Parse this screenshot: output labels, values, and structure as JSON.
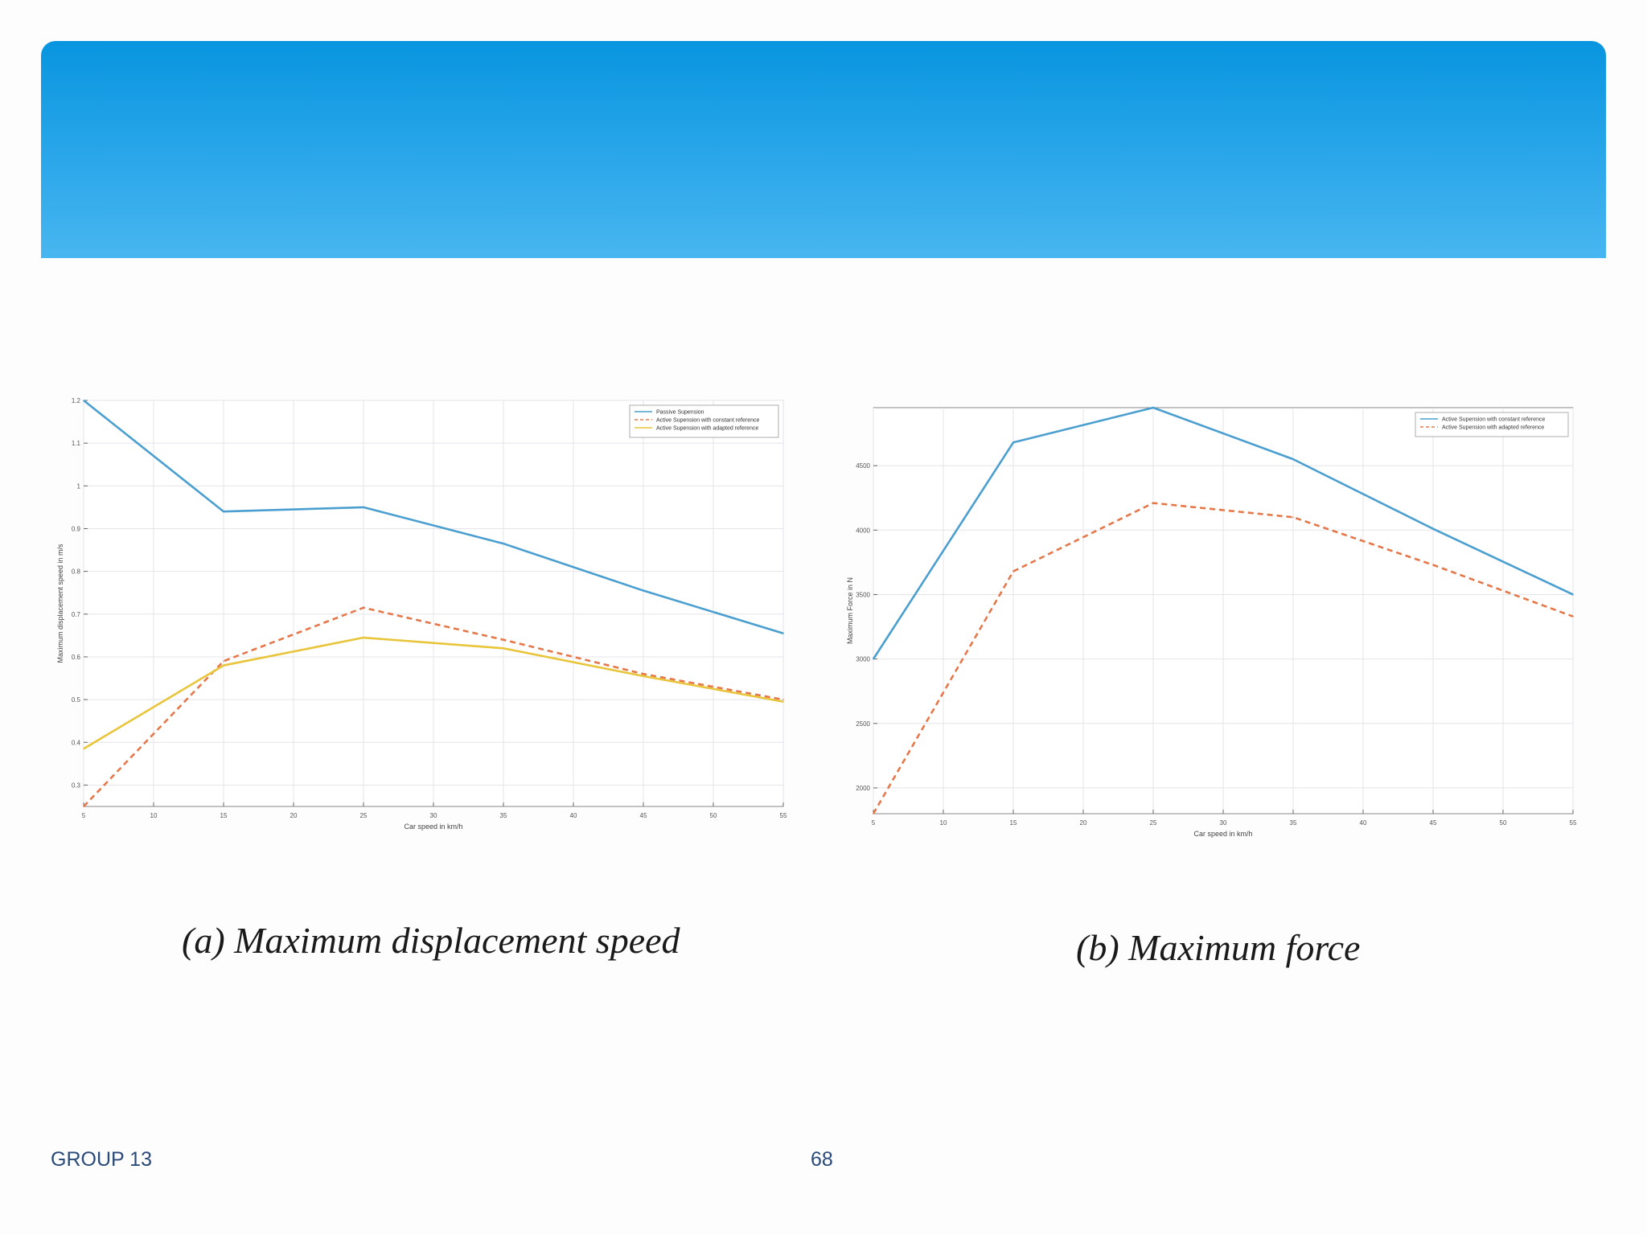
{
  "slide": {
    "footer_left": "GROUP 13",
    "page_number": "68",
    "banner_color": "#1a9fe6"
  },
  "captions": {
    "a": "(a) Maximum displacement speed",
    "b": "(b) Maximum force"
  },
  "chart_data": [
    {
      "type": "line",
      "xlabel": "Car speed in km/h",
      "ylabel": "Maximum displacement speed in m/s",
      "xlim": [
        5,
        55
      ],
      "ylim": [
        0.25,
        1.2
      ],
      "xticks": [
        5,
        10,
        15,
        20,
        25,
        30,
        35,
        40,
        45,
        50,
        55
      ],
      "yticks": [
        0.3,
        0.4,
        0.5,
        0.6,
        0.7,
        0.8,
        0.9,
        1,
        1.1,
        1.2
      ],
      "grid": true,
      "legend_position": "top-right",
      "x": [
        5,
        15,
        25,
        35,
        45,
        55
      ],
      "series": [
        {
          "name": "Passive Supension",
          "color": "#4a9fd0",
          "dash": "solid",
          "values": [
            1.2,
            0.94,
            0.95,
            0.865,
            0.755,
            0.655
          ]
        },
        {
          "name": "Active Supension with constant reference",
          "color": "#e5784a",
          "dash": "dashed",
          "values": [
            0.25,
            0.59,
            0.715,
            0.64,
            0.56,
            0.5
          ]
        },
        {
          "name": "Active Supension with adapted reference",
          "color": "#e8c53a",
          "dash": "solid",
          "values": [
            0.385,
            0.58,
            0.645,
            0.62,
            0.555,
            0.495
          ]
        }
      ]
    },
    {
      "type": "line",
      "xlabel": "Car speed in km/h",
      "ylabel": "Maximum Force in N",
      "xlim": [
        5,
        55
      ],
      "ylim": [
        1800,
        4950
      ],
      "xticks": [
        5,
        10,
        15,
        20,
        25,
        30,
        35,
        40,
        45,
        50,
        55
      ],
      "yticks": [
        2000,
        2500,
        3000,
        3500,
        4000,
        4500
      ],
      "grid": true,
      "legend_position": "top-right",
      "x": [
        5,
        15,
        25,
        35,
        45,
        55
      ],
      "series": [
        {
          "name": "Active Supension with constant reference",
          "color": "#4a9fd0",
          "dash": "solid",
          "values": [
            3000,
            4680,
            4950,
            4550,
            4010,
            3500
          ]
        },
        {
          "name": "Active Supension with adapted reference",
          "color": "#e5784a",
          "dash": "dashed",
          "values": [
            1800,
            3680,
            4210,
            4100,
            3730,
            3330
          ]
        }
      ]
    }
  ]
}
